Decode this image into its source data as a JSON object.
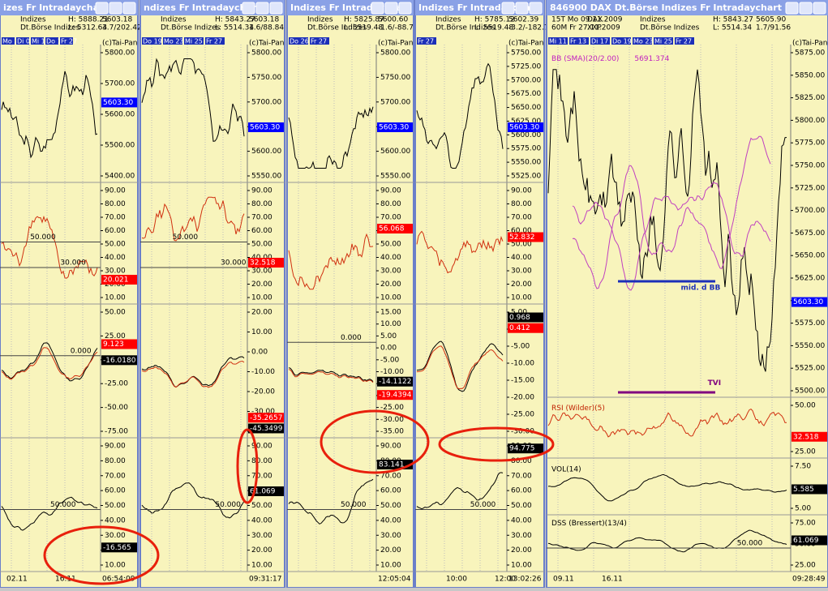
{
  "windows": [
    {
      "title": "izes Fr Intradaychart",
      "info": [
        "Indizes",
        "Dt.Börse Indizes",
        "H: 5888.21",
        "L: 5312.64",
        "5603.18",
        "3.7/202.42"
      ],
      "dates": [
        "Mo 26",
        "Di 03",
        "Mi 11",
        "Do 19",
        "Fr 27"
      ],
      "vendor": "(c)Tai-Pan",
      "panes": [
        {
          "axis": [
            "5800.00",
            "5700.00",
            "5600.00",
            "5500.00",
            "5400.00"
          ],
          "badges": [
            {
              "text": "5603.30",
              "color": "#0000ff"
            }
          ],
          "notes": []
        },
        {
          "axis": [
            "90.00",
            "80.00",
            "70.00",
            "60.00",
            "50.00",
            "40.00",
            "30.00",
            "20.00",
            "10.00"
          ],
          "badges": [
            {
              "text": "20.021",
              "color": "#ff0000"
            }
          ],
          "notes": [
            "50.000",
            "30.000"
          ]
        },
        {
          "axis": [
            "50.00",
            "25.00",
            "0.00",
            "-25.00",
            "-50.00",
            "-75.00"
          ],
          "badges": [
            {
              "text": "9.123",
              "color": "#ff0000"
            },
            {
              "text": "-16.0180",
              "color": "#000000"
            }
          ],
          "notes": [
            "0.000"
          ]
        },
        {
          "axis": [
            "90.00",
            "80.00",
            "70.00",
            "60.00",
            "50.00",
            "40.00",
            "30.00",
            "20.00",
            "10.00"
          ],
          "badges": [
            {
              "text": "-16.565",
              "color": "#000000"
            }
          ],
          "notes": [
            "50.000"
          ]
        }
      ],
      "times": [
        "02.11",
        "16.11",
        "06:54:09"
      ]
    },
    {
      "title": "ndizes Fr Intradaychart",
      "info": [
        "Indizes",
        "Dt.Börse Indizes",
        "H: 5843.27",
        "L: 5514.34",
        "5603.18",
        "1.6/88.84"
      ],
      "dates": [
        "Do 19",
        "Mo 23",
        "Mi 25",
        "Fr 27"
      ],
      "vendor": "(c)Tai-Pan",
      "panes": [
        {
          "axis": [
            "5800.00",
            "5750.00",
            "5700.00",
            "5650.00",
            "5600.00",
            "5550.00"
          ],
          "badges": [
            {
              "text": "5603.30",
              "color": "#0000ff"
            }
          ],
          "notes": []
        },
        {
          "axis": [
            "90.00",
            "80.00",
            "70.00",
            "60.00",
            "50.00",
            "40.00",
            "30.00",
            "20.00",
            "10.00"
          ],
          "badges": [
            {
              "text": "32.518",
              "color": "#ff0000"
            }
          ],
          "notes": [
            "50.000",
            "30.000"
          ]
        },
        {
          "axis": [
            "20.00",
            "10.00",
            "0.00",
            "-10.00",
            "-20.00",
            "-30.00",
            "-40.00"
          ],
          "badges": [
            {
              "text": "-35.2657",
              "color": "#ff0000"
            },
            {
              "text": "-45.3499",
              "color": "#000000"
            }
          ],
          "notes": []
        },
        {
          "axis": [
            "90.00",
            "80.00",
            "70.00",
            "60.00",
            "50.00",
            "40.00",
            "30.00",
            "20.00",
            "10.00"
          ],
          "badges": [
            {
              "text": "61.069",
              "color": "#000000"
            }
          ],
          "notes": [
            "50.000"
          ]
        }
      ],
      "times": [
        "09:31:17"
      ]
    },
    {
      "title": "Indizes Fr Intradaychart",
      "info": [
        "Indizes",
        "Dt.Börse Indizes",
        "H: 5825.87",
        "L: 5519.48",
        "5600.60",
        "-1.6/-88.7"
      ],
      "dates": [
        "Do 26",
        "Fr 27"
      ],
      "vendor": "(c)Tai-Pan",
      "panes": [
        {
          "axis": [
            "5800.00",
            "5750.00",
            "5700.00",
            "5650.00",
            "5600.00",
            "5550.00"
          ],
          "badges": [
            {
              "text": "5603.30",
              "color": "#0000ff"
            }
          ],
          "notes": []
        },
        {
          "axis": [
            "90.00",
            "80.00",
            "70.00",
            "60.00",
            "50.00",
            "40.00",
            "30.00",
            "20.00",
            "10.00"
          ],
          "badges": [
            {
              "text": "56.068",
              "color": "#ff0000"
            }
          ],
          "notes": []
        },
        {
          "axis": [
            "15.00",
            "10.00",
            "5.00",
            "0.00",
            "-5.00",
            "-10.00",
            "-15.00",
            "-20.00",
            "-25.00",
            "-30.00",
            "-35.00"
          ],
          "badges": [
            {
              "text": "-14.1122",
              "color": "#000000"
            },
            {
              "text": "-19.4394",
              "color": "#ff0000"
            }
          ],
          "notes": [
            "0.000"
          ]
        },
        {
          "axis": [
            "90.00",
            "80.00",
            "70.00",
            "60.00",
            "50.00",
            "40.00",
            "30.00",
            "20.00",
            "10.00"
          ],
          "badges": [
            {
              "text": "83.141",
              "color": "#000000"
            }
          ],
          "notes": [
            "50.000"
          ]
        }
      ],
      "times": [
        "12:05:04"
      ]
    },
    {
      "title": "Indizes Fr Intradaychart",
      "info": [
        "Indizes",
        "Dt.Börse Indizes",
        "H: 5785.12",
        "L: 5519.48",
        "5602.39",
        "-3.2/-182.7"
      ],
      "dates": [
        "Fr 27"
      ],
      "vendor": "(c)Tai-Pan",
      "panes": [
        {
          "axis": [
            "5750.00",
            "5725.00",
            "5700.00",
            "5675.00",
            "5650.00",
            "5625.00",
            "5600.00",
            "5575.00",
            "5550.00",
            "5525.00"
          ],
          "badges": [
            {
              "text": "5603.30",
              "color": "#0000ff"
            }
          ],
          "notes": []
        },
        {
          "axis": [
            "90.00",
            "80.00",
            "70.00",
            "60.00",
            "50.00",
            "40.00",
            "30.00",
            "20.00",
            "10.00"
          ],
          "badges": [
            {
              "text": "52.832",
              "color": "#ff0000"
            }
          ],
          "notes": []
        },
        {
          "axis": [
            "5.00",
            "0.00",
            "-5.00",
            "-10.00",
            "-15.00",
            "-20.00",
            "-25.00",
            "-30.00"
          ],
          "badges": [
            {
              "text": "0.968",
              "color": "#000000"
            },
            {
              "text": "0.412",
              "color": "#ff0000"
            }
          ],
          "notes": []
        },
        {
          "axis": [
            "90.00",
            "80.00",
            "70.00",
            "60.00",
            "50.00",
            "40.00",
            "30.00",
            "20.00",
            "10.00"
          ],
          "badges": [
            {
              "text": "94.775",
              "color": "#000000"
            }
          ],
          "notes": [
            "50.000"
          ]
        }
      ],
      "times": [
        "10:00",
        "12:00",
        "13:02:26"
      ]
    },
    {
      "title": "846900 DAX Dt.Börse Indizes Fr Intradaychart",
      "info": [
        "15T  Mo 09.11.2009",
        "60M  Fr 27.11.2009",
        "DAX",
        "XXP",
        "Indizes",
        "Dt.Börse Indizes",
        "H: 5843.27",
        "L: 5514.34",
        "5605.90",
        "1.7/91.56"
      ],
      "dates": [
        "Mi 11",
        "Fr 13",
        "Di 17",
        "Do 19",
        "Mo 23",
        "Mi 25",
        "Fr 27"
      ],
      "vendor": "(c)Tai-Pan",
      "panes": [
        {
          "axis": [
            "5875.00",
            "5850.00",
            "5825.00",
            "5800.00",
            "5775.00",
            "5750.00",
            "5725.00",
            "5700.00",
            "5675.00",
            "5650.00",
            "5625.00",
            "5600.00",
            "5575.00",
            "5550.00",
            "5525.00",
            "5500.00"
          ],
          "badges": [
            {
              "text": "5603.30",
              "color": "#0000ff"
            }
          ],
          "notes": [
            "BB (SMA)(20/2.00)",
            "5691.374",
            "mid. d BB",
            "TVI"
          ]
        },
        {
          "axis": [
            "50.00",
            "25.00"
          ],
          "badges": [
            {
              "text": "32.518",
              "color": "#ff0000"
            }
          ],
          "notes": [
            "RSI (Wilder)(5)"
          ]
        },
        {
          "axis": [
            "7.50",
            "5.00"
          ],
          "badges": [
            {
              "text": "5.585",
              "color": "#000000"
            }
          ],
          "notes": [
            "VOL(14)"
          ]
        },
        {
          "axis": [
            "75.00",
            "50.00",
            "25.00"
          ],
          "badges": [
            {
              "text": "61.069",
              "color": "#000000"
            }
          ],
          "notes": [
            "DSS (Bressert)(13/4)",
            "50.000"
          ]
        }
      ],
      "times": [
        "09.11",
        "16.11",
        "09:28:49"
      ]
    }
  ]
}
